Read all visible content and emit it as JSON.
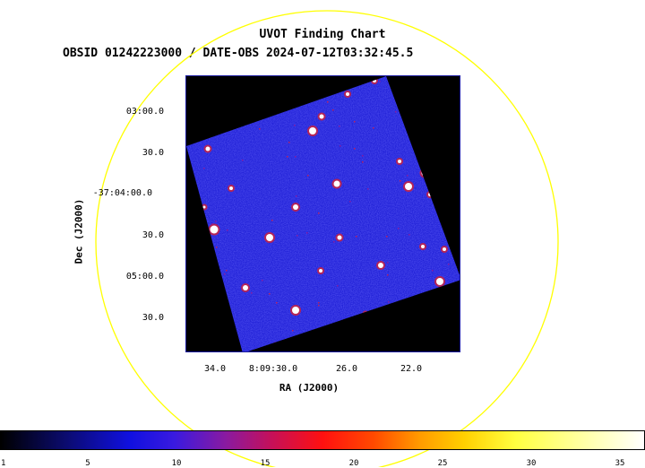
{
  "title_line1": "UVOT Finding Chart",
  "title_line2": "OBSID 01242223000 / DATE-OBS 2024-07-12T03:32:45.5",
  "axes": {
    "x_label": "RA (J2000)",
    "y_label": "Dec (J2000)",
    "y_ticks": [
      "03:00.0",
      "30.0",
      "-37:04:00.0",
      "30.0",
      "05:00.0",
      "30.0"
    ],
    "x_ticks": [
      "34.0",
      "8:09:30.0",
      "26.0",
      "22.0"
    ]
  },
  "colorbar": {
    "ticks": [
      "1",
      "5",
      "10",
      "15",
      "20",
      "25",
      "30",
      "35"
    ],
    "min": 1,
    "max": 36,
    "colormap": "heat-blue-red-yellow-white"
  },
  "colors": {
    "field_circle": "#ffff00",
    "image_noise": "#1a1ae8",
    "plot_border": "#1a1aa0"
  },
  "image": {
    "description": "rotated UVOT exposure tile on black background with point sources"
  }
}
